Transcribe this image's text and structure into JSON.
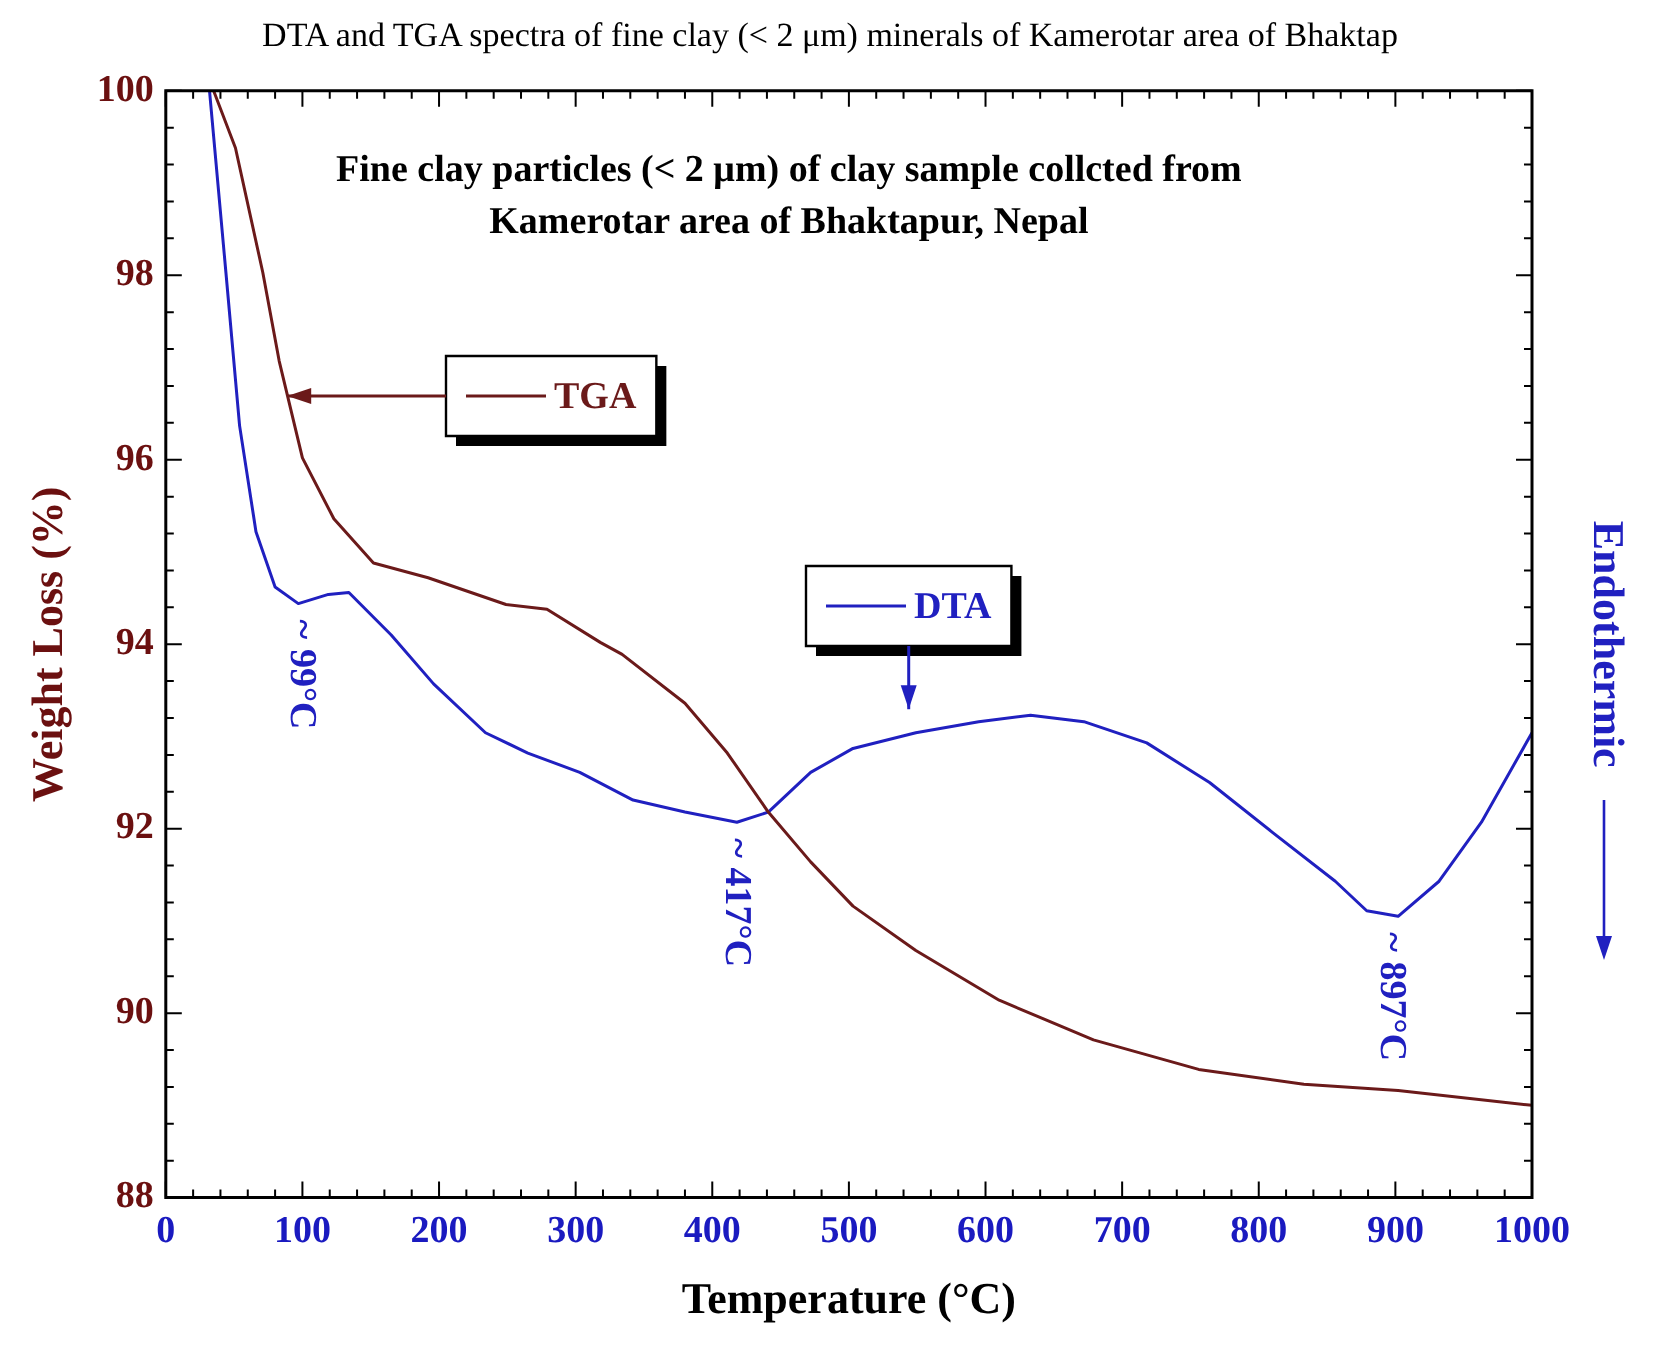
{
  "chart_data": {
    "type": "line",
    "title": "Fine clay particles (< 2 μm) of clay sample collcted from Kamerotar area of Bhaktapur, Nepal",
    "xlabel": "Temperature (°C)",
    "ylabel": "Weight Loss (%)",
    "y2label": "Endothermic",
    "xlim": [
      0,
      1000
    ],
    "xticks": [
      0,
      100,
      200,
      300,
      400,
      500,
      600,
      700,
      800,
      900,
      1000
    ],
    "ylim": [
      88,
      100
    ],
    "yticks": [
      88,
      90,
      92,
      94,
      96,
      98,
      100
    ],
    "grid": false,
    "legend": "top left",
    "marker": "none",
    "line_style": "solid",
    "annotations": [
      "DTA and TGA spectra of fine clay (< 2 μm) minerals of Kamerotar area of Bhaktap",
      {
        "text": "~ 99°C",
        "x": 99,
        "y": 94.44
      },
      {
        "text": "~ 417°C",
        "x": 417,
        "y": 92.07
      },
      {
        "text": "~ 897°C",
        "x": 897,
        "y": 91.05
      }
    ],
    "series": [
      {
        "name": "TGA",
        "color": "#6b1a1a",
        "x": [
          35,
          51,
          71,
          83,
          100,
          123,
          152,
          192,
          249,
          279,
          318,
          334,
          380,
          411,
          441,
          472,
          503,
          549,
          610,
          679,
          756,
          833,
          902,
          1000
        ],
        "values": [
          100,
          99.38,
          98.03,
          97.07,
          96.02,
          95.36,
          94.88,
          94.72,
          94.43,
          94.38,
          94.02,
          93.89,
          93.36,
          92.82,
          92.18,
          91.64,
          91.16,
          90.68,
          90.14,
          89.71,
          89.39,
          89.23,
          89.16,
          89.0
        ]
      },
      {
        "name": "DTA",
        "color": "#2020c0",
        "x": [
          32,
          44,
          54,
          66,
          80,
          97,
          119,
          134,
          165,
          196,
          234,
          265,
          303,
          342,
          380,
          418,
          441,
          472,
          503,
          549,
          595,
          633,
          672,
          718,
          764,
          810,
          856,
          879,
          902,
          932,
          963,
          1000
        ],
        "values": [
          100,
          98.03,
          96.37,
          95.22,
          94.62,
          94.44,
          94.54,
          94.56,
          94.1,
          93.57,
          93.04,
          92.82,
          92.61,
          92.31,
          92.18,
          92.07,
          92.18,
          92.61,
          92.87,
          93.04,
          93.16,
          93.23,
          93.16,
          92.93,
          92.5,
          91.96,
          91.43,
          91.11,
          91.05,
          91.43,
          92.07,
          93.04
        ]
      }
    ]
  }
}
